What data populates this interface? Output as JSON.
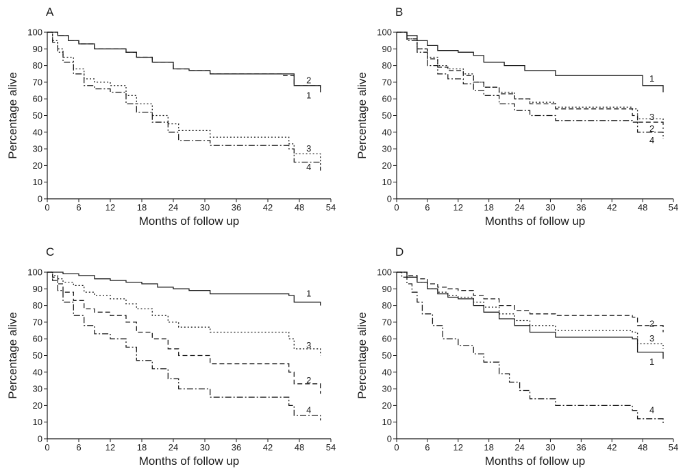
{
  "chart_data": [
    {
      "type": "line",
      "panel": "A",
      "xlabel": "Months of follow up",
      "ylabel": "Percentage alive",
      "xlim": [
        0,
        54
      ],
      "ylim": [
        0,
        100
      ],
      "xticks": [
        0,
        6,
        12,
        18,
        24,
        30,
        36,
        42,
        48,
        54
      ],
      "yticks": [
        0,
        10,
        20,
        30,
        40,
        50,
        60,
        70,
        80,
        90,
        100
      ],
      "series": [
        {
          "name": "1",
          "style": "solid",
          "x": [
            0,
            2,
            4,
            6,
            9,
            12,
            15,
            17,
            20,
            24,
            27,
            31,
            45,
            47,
            52
          ],
          "y": [
            100,
            98,
            95,
            93,
            90,
            90,
            88,
            85,
            82,
            78,
            77,
            75,
            75,
            68,
            64
          ]
        },
        {
          "name": "2",
          "style": "dashed",
          "x": [
            0,
            2,
            4,
            6,
            9,
            12,
            15,
            17,
            20,
            24,
            27,
            31,
            45,
            47,
            52
          ],
          "y": [
            100,
            98,
            95,
            93,
            90,
            90,
            88,
            85,
            82,
            78,
            77,
            75,
            74,
            68,
            65
          ]
        },
        {
          "name": "3",
          "style": "dotted",
          "x": [
            0,
            1,
            2,
            3,
            5,
            7,
            9,
            12,
            15,
            17,
            20,
            23,
            25,
            31,
            46,
            47,
            52
          ],
          "y": [
            100,
            95,
            90,
            85,
            78,
            72,
            70,
            68,
            62,
            57,
            50,
            45,
            41,
            37,
            33,
            27,
            20
          ]
        },
        {
          "name": "4",
          "style": "dashdot",
          "x": [
            0,
            1,
            2,
            3,
            5,
            7,
            9,
            12,
            15,
            17,
            20,
            23,
            25,
            31,
            46,
            47,
            52
          ],
          "y": [
            100,
            94,
            88,
            82,
            75,
            68,
            66,
            64,
            57,
            52,
            46,
            40,
            35,
            32,
            30,
            22,
            17
          ]
        }
      ],
      "curve_labels": [
        {
          "text": "2",
          "x": 49.8,
          "y": 71
        },
        {
          "text": "1",
          "x": 49.8,
          "y": 62
        },
        {
          "text": "3",
          "x": 49.8,
          "y": 30
        },
        {
          "text": "4",
          "x": 49.8,
          "y": 19
        }
      ]
    },
    {
      "type": "line",
      "panel": "B",
      "xlabel": "Months of follow up",
      "ylabel": "Percentage alive",
      "xlim": [
        0,
        54
      ],
      "ylim": [
        0,
        100
      ],
      "xticks": [
        0,
        6,
        12,
        18,
        24,
        30,
        36,
        42,
        48,
        54
      ],
      "yticks": [
        0,
        10,
        20,
        30,
        40,
        50,
        60,
        70,
        80,
        90,
        100
      ],
      "series": [
        {
          "name": "1",
          "style": "solid",
          "x": [
            0,
            2,
            4,
            6,
            8,
            12,
            15,
            17,
            21,
            25,
            31,
            46,
            48,
            52
          ],
          "y": [
            100,
            98,
            95,
            92,
            89,
            88,
            86,
            82,
            80,
            77,
            74,
            74,
            68,
            64
          ]
        },
        {
          "name": "2",
          "style": "dashed",
          "x": [
            0,
            2,
            4,
            6,
            8,
            10,
            13,
            15,
            17,
            20,
            23,
            26,
            31,
            46,
            47,
            52
          ],
          "y": [
            100,
            96,
            90,
            84,
            79,
            77,
            74,
            70,
            67,
            63,
            60,
            57,
            54,
            50,
            46,
            42
          ]
        },
        {
          "name": "3",
          "style": "dotted",
          "x": [
            0,
            2,
            4,
            6,
            8,
            10,
            13,
            15,
            17,
            20,
            23,
            26,
            31,
            46,
            47,
            52
          ],
          "y": [
            100,
            96,
            90,
            85,
            80,
            78,
            75,
            70,
            67,
            64,
            60,
            58,
            55,
            54,
            48,
            46
          ]
        },
        {
          "name": "4",
          "style": "dashdot",
          "x": [
            0,
            2,
            4,
            6,
            8,
            10,
            13,
            15,
            17,
            20,
            23,
            26,
            31,
            46,
            47,
            52
          ],
          "y": [
            100,
            95,
            88,
            80,
            75,
            72,
            69,
            65,
            62,
            57,
            53,
            50,
            47,
            46,
            40,
            36
          ]
        }
      ],
      "curve_labels": [
        {
          "text": "1",
          "x": 49.8,
          "y": 72
        },
        {
          "text": "3",
          "x": 49.8,
          "y": 49
        },
        {
          "text": "2",
          "x": 49.8,
          "y": 42
        },
        {
          "text": "4",
          "x": 49.8,
          "y": 35
        }
      ]
    },
    {
      "type": "line",
      "panel": "C",
      "xlabel": "Months of follow up",
      "ylabel": "Percentage alive",
      "xlim": [
        0,
        54
      ],
      "ylim": [
        0,
        100
      ],
      "xticks": [
        0,
        6,
        12,
        18,
        24,
        30,
        36,
        42,
        48,
        54
      ],
      "yticks": [
        0,
        10,
        20,
        30,
        40,
        50,
        60,
        70,
        80,
        90,
        100
      ],
      "series": [
        {
          "name": "1",
          "style": "solid",
          "x": [
            0,
            3,
            6,
            9,
            12,
            15,
            18,
            21,
            24,
            27,
            31,
            46,
            47,
            52
          ],
          "y": [
            100,
            99,
            98,
            96,
            95,
            94,
            93,
            91,
            90,
            89,
            87,
            86,
            82,
            80
          ]
        },
        {
          "name": "2",
          "style": "dashed",
          "x": [
            0,
            1,
            2,
            3,
            5,
            7,
            9,
            12,
            15,
            17,
            20,
            23,
            25,
            31,
            46,
            47,
            52
          ],
          "y": [
            100,
            97,
            93,
            88,
            83,
            78,
            76,
            74,
            70,
            64,
            60,
            54,
            50,
            45,
            40,
            33,
            27
          ]
        },
        {
          "name": "3",
          "style": "dotted",
          "x": [
            0,
            1,
            2,
            3,
            5,
            7,
            9,
            12,
            15,
            17,
            20,
            23,
            25,
            31,
            46,
            47,
            52
          ],
          "y": [
            100,
            98,
            96,
            94,
            92,
            88,
            86,
            84,
            81,
            78,
            74,
            70,
            67,
            64,
            60,
            54,
            50
          ]
        },
        {
          "name": "4",
          "style": "dashdot",
          "x": [
            0,
            1,
            2,
            3,
            5,
            7,
            9,
            12,
            15,
            17,
            20,
            23,
            25,
            31,
            46,
            47,
            52
          ],
          "y": [
            100,
            95,
            89,
            82,
            74,
            68,
            63,
            60,
            55,
            47,
            42,
            36,
            30,
            25,
            20,
            14,
            11
          ]
        }
      ],
      "curve_labels": [
        {
          "text": "1",
          "x": 49.8,
          "y": 87
        },
        {
          "text": "3",
          "x": 49.8,
          "y": 56
        },
        {
          "text": "2",
          "x": 49.8,
          "y": 35
        },
        {
          "text": "4",
          "x": 49.8,
          "y": 17
        }
      ]
    },
    {
      "type": "line",
      "panel": "D",
      "xlabel": "Months of follow up",
      "ylabel": "Percentage alive",
      "xlim": [
        0,
        54
      ],
      "ylim": [
        0,
        100
      ],
      "xticks": [
        0,
        6,
        12,
        18,
        24,
        30,
        36,
        42,
        48,
        54
      ],
      "yticks": [
        0,
        10,
        20,
        30,
        40,
        50,
        60,
        70,
        80,
        90,
        100
      ],
      "series": [
        {
          "name": "1",
          "style": "solid",
          "x": [
            0,
            2,
            4,
            6,
            8,
            10,
            12,
            15,
            17,
            20,
            23,
            26,
            31,
            46,
            47,
            52
          ],
          "y": [
            100,
            97,
            94,
            90,
            87,
            85,
            84,
            80,
            76,
            72,
            68,
            64,
            61,
            60,
            52,
            48
          ]
        },
        {
          "name": "2",
          "style": "dashed",
          "x": [
            0,
            2,
            4,
            6,
            8,
            10,
            12,
            15,
            17,
            20,
            23,
            26,
            31,
            46,
            47,
            52
          ],
          "y": [
            100,
            98,
            96,
            93,
            91,
            90,
            89,
            86,
            84,
            80,
            77,
            75,
            74,
            73,
            68,
            64
          ]
        },
        {
          "name": "3",
          "style": "dotted",
          "x": [
            0,
            2,
            4,
            6,
            8,
            10,
            12,
            15,
            17,
            20,
            23,
            26,
            31,
            46,
            47,
            52
          ],
          "y": [
            100,
            97,
            94,
            90,
            88,
            86,
            85,
            82,
            79,
            75,
            71,
            68,
            65,
            64,
            57,
            54
          ]
        },
        {
          "name": "4",
          "style": "dashdot",
          "x": [
            0,
            1,
            2,
            3,
            4,
            5,
            7,
            9,
            12,
            15,
            17,
            20,
            22,
            24,
            26,
            31,
            46,
            47,
            52
          ],
          "y": [
            100,
            97,
            93,
            88,
            82,
            75,
            68,
            60,
            56,
            51,
            46,
            39,
            34,
            29,
            24,
            20,
            17,
            12,
            9
          ]
        }
      ],
      "curve_labels": [
        {
          "text": "2",
          "x": 49.8,
          "y": 69
        },
        {
          "text": "3",
          "x": 49.8,
          "y": 60
        },
        {
          "text": "1",
          "x": 49.8,
          "y": 46
        },
        {
          "text": "4",
          "x": 49.8,
          "y": 17
        }
      ]
    }
  ]
}
